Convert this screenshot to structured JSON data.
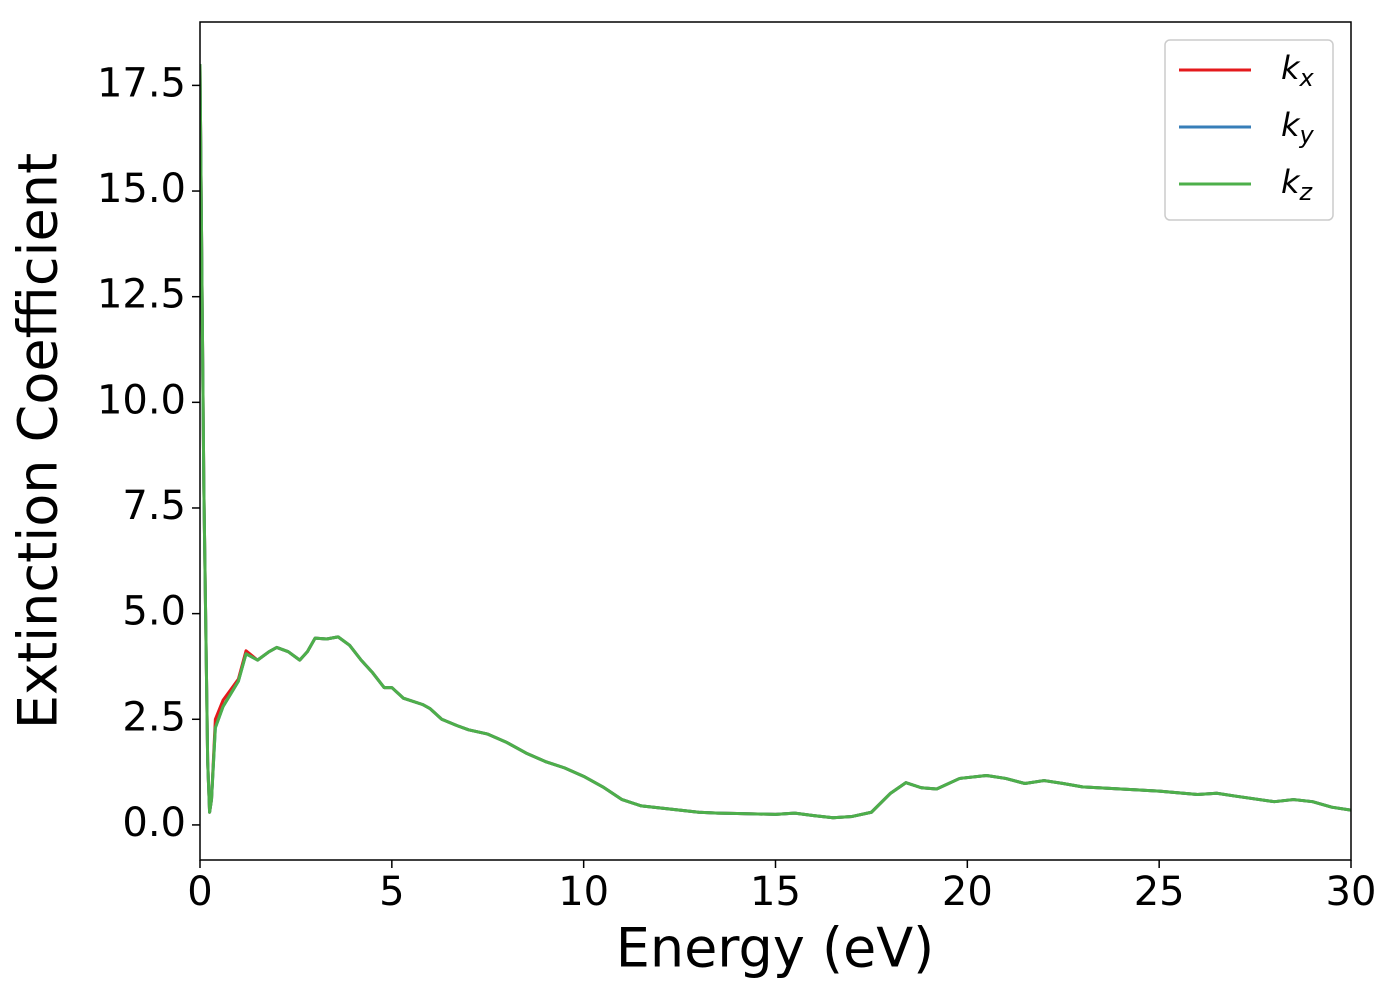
{
  "chart_data": {
    "type": "line",
    "x_label": "Energy (eV)",
    "y_label": "Extinction Coefficient",
    "x": [
      0,
      0.1,
      0.2,
      0.25,
      0.3,
      0.4,
      0.6,
      0.8,
      1.0,
      1.2,
      1.5,
      1.8,
      2.0,
      2.3,
      2.6,
      2.8,
      3.0,
      3.3,
      3.6,
      3.9,
      4.2,
      4.5,
      4.8,
      5.0,
      5.3,
      5.8,
      6.0,
      6.3,
      6.7,
      7.0,
      7.5,
      8.0,
      8.5,
      9.0,
      9.5,
      10.0,
      10.5,
      11.0,
      11.5,
      12.0,
      12.5,
      13.0,
      13.5,
      14.0,
      15.0,
      15.5,
      16.0,
      16.5,
      17.0,
      17.5,
      18.0,
      18.4,
      18.8,
      19.2,
      19.8,
      20.5,
      21.0,
      21.5,
      22.0,
      22.5,
      23.0,
      24.0,
      25.0,
      26.0,
      26.5,
      27.0,
      28.0,
      28.5,
      29.0,
      29.5,
      30.0
    ],
    "series": [
      {
        "name": "kx",
        "color": "#e41a1c",
        "values": [
          18.0,
          8.0,
          1.5,
          0.3,
          0.6,
          2.5,
          2.95,
          3.2,
          3.45,
          4.12,
          3.9,
          4.1,
          4.2,
          4.1,
          3.9,
          4.1,
          4.42,
          4.4,
          4.45,
          4.25,
          3.9,
          3.6,
          3.25,
          3.25,
          3.0,
          2.85,
          2.75,
          2.5,
          2.35,
          2.25,
          2.15,
          1.95,
          1.7,
          1.5,
          1.35,
          1.15,
          0.9,
          0.6,
          0.45,
          0.4,
          0.35,
          0.3,
          0.28,
          0.27,
          0.25,
          0.28,
          0.22,
          0.17,
          0.2,
          0.3,
          0.75,
          1.0,
          0.88,
          0.85,
          1.1,
          1.17,
          1.1,
          0.98,
          1.05,
          0.98,
          0.9,
          0.85,
          0.8,
          0.72,
          0.75,
          0.68,
          0.55,
          0.6,
          0.55,
          0.42,
          0.35
        ]
      },
      {
        "name": "ky",
        "color": "#377eb8",
        "values": [
          18.0,
          8.0,
          1.5,
          0.3,
          0.6,
          2.3,
          2.8,
          3.1,
          3.4,
          4.05,
          3.9,
          4.1,
          4.2,
          4.1,
          3.9,
          4.1,
          4.42,
          4.4,
          4.45,
          4.25,
          3.9,
          3.6,
          3.25,
          3.25,
          3.0,
          2.85,
          2.75,
          2.5,
          2.35,
          2.25,
          2.15,
          1.95,
          1.7,
          1.5,
          1.35,
          1.15,
          0.9,
          0.6,
          0.45,
          0.4,
          0.35,
          0.3,
          0.28,
          0.27,
          0.25,
          0.28,
          0.22,
          0.17,
          0.2,
          0.3,
          0.75,
          1.0,
          0.88,
          0.85,
          1.1,
          1.17,
          1.1,
          0.98,
          1.05,
          0.98,
          0.9,
          0.85,
          0.8,
          0.72,
          0.75,
          0.68,
          0.55,
          0.6,
          0.55,
          0.42,
          0.35
        ]
      },
      {
        "name": "kz",
        "color": "#4daf4a",
        "values": [
          18.0,
          8.0,
          1.5,
          0.3,
          0.6,
          2.3,
          2.8,
          3.1,
          3.4,
          4.05,
          3.9,
          4.1,
          4.2,
          4.1,
          3.9,
          4.1,
          4.42,
          4.4,
          4.45,
          4.25,
          3.9,
          3.6,
          3.25,
          3.25,
          3.0,
          2.85,
          2.75,
          2.5,
          2.35,
          2.25,
          2.15,
          1.95,
          1.7,
          1.5,
          1.35,
          1.15,
          0.9,
          0.6,
          0.45,
          0.4,
          0.35,
          0.3,
          0.28,
          0.27,
          0.25,
          0.28,
          0.22,
          0.17,
          0.2,
          0.3,
          0.75,
          1.0,
          0.88,
          0.85,
          1.1,
          1.17,
          1.1,
          0.98,
          1.05,
          0.98,
          0.9,
          0.85,
          0.8,
          0.72,
          0.75,
          0.68,
          0.55,
          0.6,
          0.55,
          0.42,
          0.35
        ]
      }
    ],
    "xlim": [
      0,
      30
    ],
    "xticks": [
      0,
      5,
      10,
      15,
      20,
      25,
      30
    ],
    "ylim": [
      -0.83,
      19.0
    ],
    "yticks": [
      {
        "value": 0,
        "label": "0.0"
      },
      2.5,
      {
        "value": 5,
        "label": "5.0"
      },
      7.5,
      {
        "value": 10,
        "label": "10.0"
      },
      12.5,
      {
        "value": 15,
        "label": "15.0"
      },
      17.5
    ],
    "legend": "upper right",
    "grid": false
  }
}
